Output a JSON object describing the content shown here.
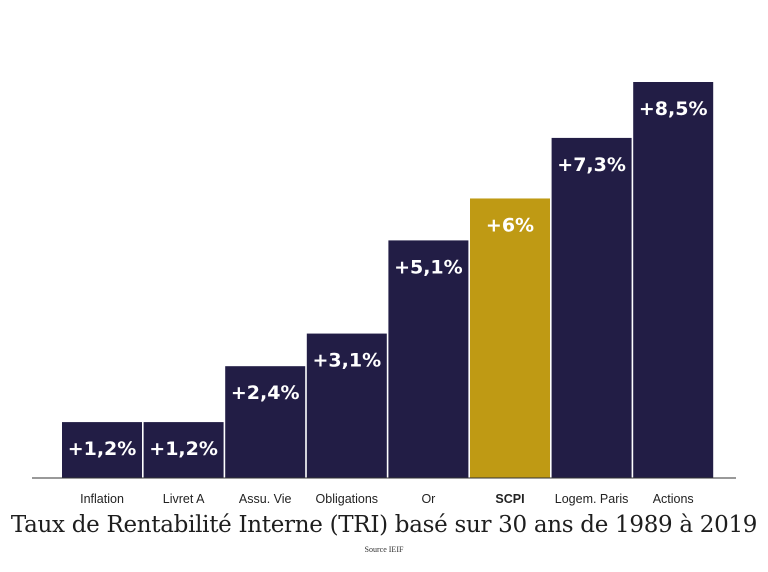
{
  "chart_data": {
    "type": "bar",
    "title": "Taux de Rentabilité Interne (TRI) basé sur 30 ans de 1989 à 2019",
    "subtitle": "Source IEIF",
    "categories": [
      "Inflation",
      "Livret A",
      "Assu. Vie",
      "Obligations",
      "Or",
      "SCPI",
      "Logem. Paris",
      "Actions"
    ],
    "values": [
      1.2,
      1.2,
      2.4,
      3.1,
      5.1,
      6.0,
      7.3,
      8.5
    ],
    "data_labels": [
      "+1,2%",
      "+1,2%",
      "+2,4%",
      "+3,1%",
      "+5,1%",
      "+6%",
      "+7,3%",
      "+8,5%"
    ],
    "highlight_index": 5,
    "ylim": [
      0,
      8.5
    ],
    "grid": false,
    "colors": {
      "bar": "#221d45",
      "highlight": "#bf9a14",
      "label": "#ffffff",
      "axis": "#333333"
    }
  }
}
